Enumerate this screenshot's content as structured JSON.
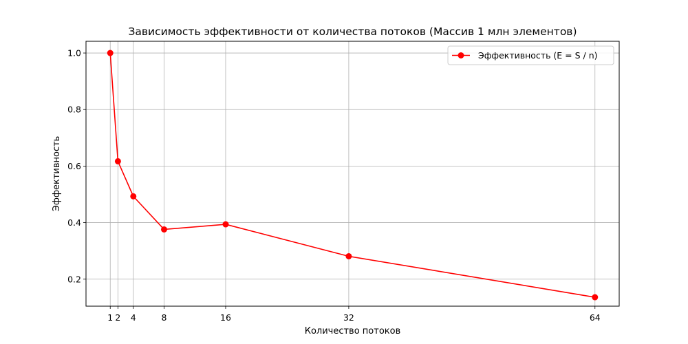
{
  "chart_data": {
    "type": "line",
    "title": "Зависимость эффективности от количества потоков (Массив 1 млн элементов)",
    "xlabel": "Количество потоков",
    "ylabel": "Эффективность",
    "x": [
      1,
      2,
      4,
      8,
      16,
      32,
      64
    ],
    "xticks": [
      1,
      2,
      4,
      8,
      16,
      32,
      64
    ],
    "yticks": [
      0.2,
      0.4,
      0.6,
      0.8,
      1.0
    ],
    "ytick_labels": [
      "0.2",
      "0.4",
      "0.6",
      "0.8",
      "1.0"
    ],
    "xlim": [
      -2.15,
      67.15
    ],
    "ylim": [
      0.1045,
      1.0415
    ],
    "grid": true,
    "legend_position": "top-right",
    "series": [
      {
        "name": "Эффективность (E = S / n)",
        "color": "#ff0000",
        "marker": "circle",
        "values": [
          1.0,
          0.617,
          0.493,
          0.376,
          0.394,
          0.281,
          0.136
        ]
      }
    ]
  }
}
